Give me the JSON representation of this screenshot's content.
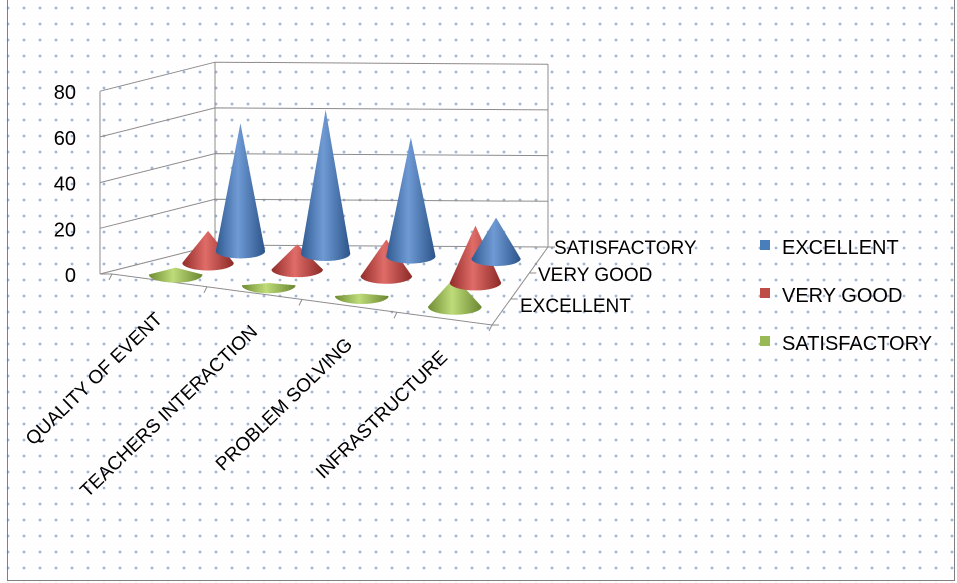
{
  "chart_data": {
    "type": "bar",
    "bar_shape": "cone-3d",
    "categories": [
      "QUALITY OF EVENT",
      "TEACHERS INTERACTION",
      "PROBLEM SOLVING",
      "INFRASTRUCTURE"
    ],
    "series": [
      {
        "name": "EXCELLENT",
        "values": [
          56,
          63,
          52,
          18
        ],
        "color": "#4a7ebb"
      },
      {
        "name": "VERY GOOD",
        "values": [
          14,
          11,
          16,
          25
        ],
        "color": "#be4b48"
      },
      {
        "name": "SATISFACTORY",
        "values": [
          3,
          1,
          1,
          13
        ],
        "color": "#98b954"
      }
    ],
    "depth_labels": [
      "SATISFACTORY",
      "VERY GOOD",
      "EXCELLENT"
    ],
    "yticks": [
      0,
      20,
      40,
      60,
      80
    ],
    "ylim": [
      0,
      80
    ],
    "legend": {
      "position": "right",
      "entries": [
        "EXCELLENT",
        "VERY GOOD",
        "SATISFACTORY"
      ]
    },
    "grid": true
  }
}
